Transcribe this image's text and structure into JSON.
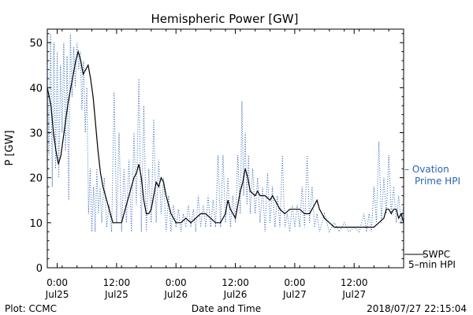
{
  "chart_data": {
    "type": "line",
    "title": "Hemispheric Power [GW]",
    "ylabel": "P [GW]",
    "xlabel": "Date and Time",
    "ylim": [
      0,
      53
    ],
    "yticks": [
      0,
      10,
      20,
      30,
      40,
      50
    ],
    "xlim": [
      "2018-07-24T22:00",
      "2018-07-27T22:00"
    ],
    "xticks": [
      {
        "t": "2018-07-25T00:00",
        "time": "0:00",
        "date": "Jul25"
      },
      {
        "t": "2018-07-25T12:00",
        "time": "12:00",
        "date": "Jul25"
      },
      {
        "t": "2018-07-26T00:00",
        "time": "0:00",
        "date": "Jul26"
      },
      {
        "t": "2018-07-26T12:00",
        "time": "12:00",
        "date": "Jul26"
      },
      {
        "t": "2018-07-27T00:00",
        "time": "0:00",
        "date": "Jul27"
      },
      {
        "t": "2018-07-27T12:00",
        "time": "12:00",
        "date": "Jul27"
      }
    ],
    "grid": false,
    "series": [
      {
        "name": "SWPC 5-min HPI",
        "style": "solid",
        "color": "#000000",
        "points": [
          [
            "2018-07-24T22:00",
            40
          ],
          [
            "2018-07-24T22:45",
            36
          ],
          [
            "2018-07-24T23:15",
            30
          ],
          [
            "2018-07-24T23:45",
            26
          ],
          [
            "2018-07-25T00:15",
            23
          ],
          [
            "2018-07-25T00:45",
            25
          ],
          [
            "2018-07-25T01:15",
            29
          ],
          [
            "2018-07-25T01:45",
            33
          ],
          [
            "2018-07-25T02:15",
            37
          ],
          [
            "2018-07-25T02:45",
            40
          ],
          [
            "2018-07-25T03:15",
            43
          ],
          [
            "2018-07-25T03:45",
            46
          ],
          [
            "2018-07-25T04:15",
            48
          ],
          [
            "2018-07-25T04:45",
            46
          ],
          [
            "2018-07-25T05:15",
            43
          ],
          [
            "2018-07-25T05:45",
            44
          ],
          [
            "2018-07-25T06:15",
            45
          ],
          [
            "2018-07-25T06:45",
            42
          ],
          [
            "2018-07-25T07:15",
            38
          ],
          [
            "2018-07-25T07:45",
            32
          ],
          [
            "2018-07-25T08:15",
            26
          ],
          [
            "2018-07-25T08:45",
            21
          ],
          [
            "2018-07-25T09:15",
            18
          ],
          [
            "2018-07-25T09:45",
            16
          ],
          [
            "2018-07-25T10:15",
            14
          ],
          [
            "2018-07-25T10:45",
            12
          ],
          [
            "2018-07-25T11:15",
            10
          ],
          [
            "2018-07-25T12:00",
            10
          ],
          [
            "2018-07-25T13:00",
            10
          ],
          [
            "2018-07-25T13:30",
            12
          ],
          [
            "2018-07-25T14:00",
            14
          ],
          [
            "2018-07-25T14:30",
            16
          ],
          [
            "2018-07-25T15:00",
            18
          ],
          [
            "2018-07-25T15:30",
            20
          ],
          [
            "2018-07-25T16:00",
            21
          ],
          [
            "2018-07-25T16:30",
            23
          ],
          [
            "2018-07-25T17:00",
            20
          ],
          [
            "2018-07-25T17:30",
            15
          ],
          [
            "2018-07-25T18:00",
            12
          ],
          [
            "2018-07-25T18:30",
            12
          ],
          [
            "2018-07-25T19:00",
            13
          ],
          [
            "2018-07-25T19:30",
            16
          ],
          [
            "2018-07-25T20:00",
            19
          ],
          [
            "2018-07-25T20:30",
            18
          ],
          [
            "2018-07-25T21:00",
            20
          ],
          [
            "2018-07-25T21:30",
            19
          ],
          [
            "2018-07-25T22:00",
            16
          ],
          [
            "2018-07-25T22:30",
            14
          ],
          [
            "2018-07-25T23:00",
            12
          ],
          [
            "2018-07-25T23:30",
            11
          ],
          [
            "2018-07-26T00:00",
            10
          ],
          [
            "2018-07-26T01:00",
            10
          ],
          [
            "2018-07-26T02:00",
            11
          ],
          [
            "2018-07-26T03:00",
            10
          ],
          [
            "2018-07-26T04:00",
            11
          ],
          [
            "2018-07-26T05:00",
            12
          ],
          [
            "2018-07-26T06:00",
            12
          ],
          [
            "2018-07-26T07:00",
            11
          ],
          [
            "2018-07-26T08:00",
            10
          ],
          [
            "2018-07-26T09:00",
            10
          ],
          [
            "2018-07-26T10:00",
            12
          ],
          [
            "2018-07-26T10:30",
            15
          ],
          [
            "2018-07-26T11:00",
            13
          ],
          [
            "2018-07-26T12:00",
            11
          ],
          [
            "2018-07-26T12:30",
            14
          ],
          [
            "2018-07-26T13:00",
            17
          ],
          [
            "2018-07-26T13:30",
            19
          ],
          [
            "2018-07-26T14:00",
            22
          ],
          [
            "2018-07-26T14:30",
            20
          ],
          [
            "2018-07-26T15:00",
            17
          ],
          [
            "2018-07-26T16:00",
            16
          ],
          [
            "2018-07-26T16:30",
            17
          ],
          [
            "2018-07-26T17:00",
            16
          ],
          [
            "2018-07-26T18:00",
            16
          ],
          [
            "2018-07-26T19:00",
            15
          ],
          [
            "2018-07-26T19:30",
            16
          ],
          [
            "2018-07-26T20:00",
            15
          ],
          [
            "2018-07-26T21:00",
            13
          ],
          [
            "2018-07-26T22:00",
            12
          ],
          [
            "2018-07-26T23:00",
            13
          ],
          [
            "2018-07-27T00:00",
            13
          ],
          [
            "2018-07-27T01:00",
            13
          ],
          [
            "2018-07-27T02:00",
            12
          ],
          [
            "2018-07-27T03:00",
            12
          ],
          [
            "2018-07-27T04:00",
            14
          ],
          [
            "2018-07-27T04:30",
            15
          ],
          [
            "2018-07-27T05:00",
            13
          ],
          [
            "2018-07-27T06:00",
            11
          ],
          [
            "2018-07-27T07:00",
            10
          ],
          [
            "2018-07-27T08:00",
            9
          ],
          [
            "2018-07-27T09:00",
            9
          ],
          [
            "2018-07-27T10:00",
            9
          ],
          [
            "2018-07-27T12:00",
            9
          ],
          [
            "2018-07-27T14:00",
            9
          ],
          [
            "2018-07-27T16:00",
            9
          ],
          [
            "2018-07-27T17:00",
            10
          ],
          [
            "2018-07-27T18:00",
            11
          ],
          [
            "2018-07-27T18:30",
            13
          ],
          [
            "2018-07-27T19:00",
            13
          ],
          [
            "2018-07-27T19:30",
            12
          ],
          [
            "2018-07-27T20:00",
            13
          ],
          [
            "2018-07-27T20:30",
            13
          ],
          [
            "2018-07-27T21:00",
            11
          ],
          [
            "2018-07-27T21:30",
            12
          ],
          [
            "2018-07-27T22:00",
            10
          ]
        ]
      },
      {
        "name": "Ovation Prime HPI",
        "style": "dotted",
        "color": "#2a63b8",
        "points": [
          [
            "2018-07-24T22:00",
            45
          ],
          [
            "2018-07-24T22:20",
            25
          ],
          [
            "2018-07-24T22:40",
            52
          ],
          [
            "2018-07-24T23:00",
            18
          ],
          [
            "2018-07-24T23:20",
            50
          ],
          [
            "2018-07-24T23:40",
            22
          ],
          [
            "2018-07-25T00:00",
            48
          ],
          [
            "2018-07-25T00:20",
            20
          ],
          [
            "2018-07-25T00:40",
            45
          ],
          [
            "2018-07-25T01:00",
            30
          ],
          [
            "2018-07-25T01:20",
            50
          ],
          [
            "2018-07-25T01:40",
            26
          ],
          [
            "2018-07-25T02:00",
            47
          ],
          [
            "2018-07-25T02:20",
            15
          ],
          [
            "2018-07-25T02:40",
            52
          ],
          [
            "2018-07-25T03:00",
            38
          ],
          [
            "2018-07-25T03:20",
            49
          ],
          [
            "2018-07-25T03:40",
            40
          ],
          [
            "2018-07-25T04:00",
            50
          ],
          [
            "2018-07-25T04:20",
            44
          ],
          [
            "2018-07-25T04:40",
            48
          ],
          [
            "2018-07-25T05:00",
            35
          ],
          [
            "2018-07-25T05:20",
            46
          ],
          [
            "2018-07-25T05:40",
            30
          ],
          [
            "2018-07-25T06:00",
            40
          ],
          [
            "2018-07-25T06:20",
            12
          ],
          [
            "2018-07-25T06:40",
            22
          ],
          [
            "2018-07-25T07:00",
            8
          ],
          [
            "2018-07-25T07:20",
            18
          ],
          [
            "2018-07-25T07:40",
            8
          ],
          [
            "2018-07-25T08:00",
            22
          ],
          [
            "2018-07-25T08:20",
            12
          ],
          [
            "2018-07-25T08:40",
            18
          ],
          [
            "2018-07-25T09:00",
            10
          ],
          [
            "2018-07-25T09:30",
            20
          ],
          [
            "2018-07-25T10:00",
            9
          ],
          [
            "2018-07-25T10:30",
            14
          ],
          [
            "2018-07-25T11:00",
            8
          ],
          [
            "2018-07-25T11:30",
            39
          ],
          [
            "2018-07-25T12:00",
            10
          ],
          [
            "2018-07-25T12:30",
            30
          ],
          [
            "2018-07-25T13:00",
            8
          ],
          [
            "2018-07-25T13:30",
            22
          ],
          [
            "2018-07-25T14:00",
            10
          ],
          [
            "2018-07-25T14:30",
            24
          ],
          [
            "2018-07-25T15:00",
            8
          ],
          [
            "2018-07-25T15:30",
            30
          ],
          [
            "2018-07-25T16:00",
            14
          ],
          [
            "2018-07-25T16:30",
            42
          ],
          [
            "2018-07-25T17:00",
            8
          ],
          [
            "2018-07-25T17:30",
            36
          ],
          [
            "2018-07-25T18:00",
            8
          ],
          [
            "2018-07-25T18:30",
            22
          ],
          [
            "2018-07-25T19:00",
            10
          ],
          [
            "2018-07-25T19:30",
            33
          ],
          [
            "2018-07-25T20:00",
            10
          ],
          [
            "2018-07-25T20:30",
            24
          ],
          [
            "2018-07-25T21:00",
            12
          ],
          [
            "2018-07-25T21:30",
            20
          ],
          [
            "2018-07-25T22:00",
            8
          ],
          [
            "2018-07-25T22:30",
            16
          ],
          [
            "2018-07-25T23:00",
            8
          ],
          [
            "2018-07-25T23:30",
            14
          ],
          [
            "2018-07-26T00:00",
            9
          ],
          [
            "2018-07-26T00:30",
            13
          ],
          [
            "2018-07-26T01:00",
            8
          ],
          [
            "2018-07-26T01:30",
            12
          ],
          [
            "2018-07-26T02:00",
            9
          ],
          [
            "2018-07-26T02:30",
            14
          ],
          [
            "2018-07-26T03:00",
            9
          ],
          [
            "2018-07-26T03:30",
            13
          ],
          [
            "2018-07-26T04:00",
            8
          ],
          [
            "2018-07-26T04:30",
            16
          ],
          [
            "2018-07-26T05:00",
            9
          ],
          [
            "2018-07-26T05:30",
            14
          ],
          [
            "2018-07-26T06:00",
            9
          ],
          [
            "2018-07-26T06:30",
            16
          ],
          [
            "2018-07-26T07:00",
            9
          ],
          [
            "2018-07-26T07:30",
            15
          ],
          [
            "2018-07-26T08:00",
            9
          ],
          [
            "2018-07-26T08:30",
            25
          ],
          [
            "2018-07-26T09:00",
            9
          ],
          [
            "2018-07-26T09:30",
            25
          ],
          [
            "2018-07-26T10:00",
            10
          ],
          [
            "2018-07-26T10:30",
            20
          ],
          [
            "2018-07-26T11:00",
            9
          ],
          [
            "2018-07-26T11:30",
            16
          ],
          [
            "2018-07-26T12:00",
            10
          ],
          [
            "2018-07-26T12:30",
            25
          ],
          [
            "2018-07-26T13:00",
            12
          ],
          [
            "2018-07-26T13:20",
            37
          ],
          [
            "2018-07-26T13:40",
            16
          ],
          [
            "2018-07-26T14:00",
            30
          ],
          [
            "2018-07-26T14:20",
            14
          ],
          [
            "2018-07-26T14:40",
            25
          ],
          [
            "2018-07-26T15:00",
            12
          ],
          [
            "2018-07-26T15:30",
            22
          ],
          [
            "2018-07-26T16:00",
            12
          ],
          [
            "2018-07-26T16:30",
            20
          ],
          [
            "2018-07-26T17:00",
            10
          ],
          [
            "2018-07-26T17:30",
            18
          ],
          [
            "2018-07-26T18:00",
            8
          ],
          [
            "2018-07-26T18:30",
            21
          ],
          [
            "2018-07-26T19:00",
            10
          ],
          [
            "2018-07-26T19:30",
            18
          ],
          [
            "2018-07-26T20:00",
            9
          ],
          [
            "2018-07-26T20:30",
            16
          ],
          [
            "2018-07-26T21:00",
            9
          ],
          [
            "2018-07-26T21:30",
            25
          ],
          [
            "2018-07-26T22:00",
            9
          ],
          [
            "2018-07-26T22:30",
            12
          ],
          [
            "2018-07-26T23:00",
            8
          ],
          [
            "2018-07-26T23:30",
            14
          ],
          [
            "2018-07-27T00:00",
            9
          ],
          [
            "2018-07-27T00:30",
            14
          ],
          [
            "2018-07-27T01:00",
            9
          ],
          [
            "2018-07-27T01:30",
            18
          ],
          [
            "2018-07-27T02:00",
            9
          ],
          [
            "2018-07-27T02:30",
            25
          ],
          [
            "2018-07-27T03:00",
            10
          ],
          [
            "2018-07-27T03:30",
            18
          ],
          [
            "2018-07-27T04:00",
            9
          ],
          [
            "2018-07-27T04:30",
            12
          ],
          [
            "2018-07-27T05:00",
            8
          ],
          [
            "2018-07-27T06:00",
            12
          ],
          [
            "2018-07-27T07:00",
            8
          ],
          [
            "2018-07-27T08:00",
            10
          ],
          [
            "2018-07-27T09:00",
            8
          ],
          [
            "2018-07-27T10:00",
            10
          ],
          [
            "2018-07-27T11:00",
            8
          ],
          [
            "2018-07-27T12:00",
            9
          ],
          [
            "2018-07-27T13:00",
            8
          ],
          [
            "2018-07-27T14:00",
            12
          ],
          [
            "2018-07-27T14:30",
            8
          ],
          [
            "2018-07-27T15:00",
            12
          ],
          [
            "2018-07-27T15:30",
            8
          ],
          [
            "2018-07-27T16:00",
            18
          ],
          [
            "2018-07-27T16:30",
            10
          ],
          [
            "2018-07-27T17:00",
            28
          ],
          [
            "2018-07-27T17:30",
            10
          ],
          [
            "2018-07-27T18:00",
            20
          ],
          [
            "2018-07-27T18:30",
            12
          ],
          [
            "2018-07-27T19:00",
            25
          ],
          [
            "2018-07-27T19:30",
            12
          ],
          [
            "2018-07-27T20:00",
            18
          ],
          [
            "2018-07-27T20:30",
            10
          ],
          [
            "2018-07-27T21:00",
            16
          ],
          [
            "2018-07-27T21:30",
            10
          ],
          [
            "2018-07-27T22:00",
            14
          ]
        ]
      }
    ]
  },
  "legend": {
    "ovation_line1": "– Ovation",
    "ovation_line2": "Prime HPI",
    "swpc_line1": "SWPC",
    "swpc_line2": "5–min HPI"
  },
  "footer": {
    "plot_credit": "Plot: CCMC",
    "timestamp": "2018/07/27 22:15:04"
  }
}
